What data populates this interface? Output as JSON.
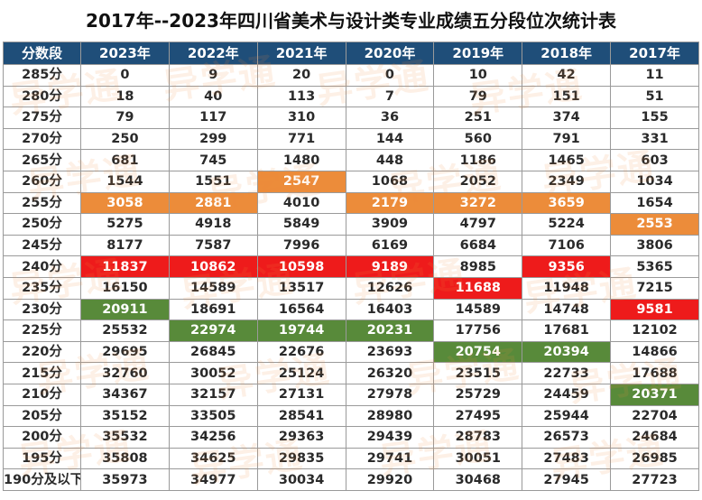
{
  "title": "2017年--2023年四川省美术与设计类专业成绩五分段位次统计表",
  "watermark": "异学通",
  "headers": [
    "分数段",
    "2023年",
    "2022年",
    "2021年",
    "2020年",
    "2019年",
    "2018年",
    "2017年"
  ],
  "rows": [
    {
      "label": "285分",
      "cells": [
        {
          "v": "0"
        },
        {
          "v": "9"
        },
        {
          "v": "20"
        },
        {
          "v": "0"
        },
        {
          "v": "10"
        },
        {
          "v": "42"
        },
        {
          "v": "11"
        }
      ]
    },
    {
      "label": "280分",
      "cells": [
        {
          "v": "18"
        },
        {
          "v": "40"
        },
        {
          "v": "113"
        },
        {
          "v": "7"
        },
        {
          "v": "79"
        },
        {
          "v": "151"
        },
        {
          "v": "51"
        }
      ]
    },
    {
      "label": "275分",
      "cells": [
        {
          "v": "79"
        },
        {
          "v": "117"
        },
        {
          "v": "310"
        },
        {
          "v": "36"
        },
        {
          "v": "251"
        },
        {
          "v": "374"
        },
        {
          "v": "155"
        }
      ]
    },
    {
      "label": "270分",
      "cells": [
        {
          "v": "250"
        },
        {
          "v": "299"
        },
        {
          "v": "771"
        },
        {
          "v": "144"
        },
        {
          "v": "560"
        },
        {
          "v": "791"
        },
        {
          "v": "331"
        }
      ]
    },
    {
      "label": "265分",
      "cells": [
        {
          "v": "681"
        },
        {
          "v": "745"
        },
        {
          "v": "1480"
        },
        {
          "v": "448"
        },
        {
          "v": "1186"
        },
        {
          "v": "1465"
        },
        {
          "v": "603"
        }
      ]
    },
    {
      "label": "260分",
      "cells": [
        {
          "v": "1544"
        },
        {
          "v": "1551"
        },
        {
          "v": "2547",
          "h": "orange"
        },
        {
          "v": "1068"
        },
        {
          "v": "2052"
        },
        {
          "v": "2349"
        },
        {
          "v": "1034"
        }
      ]
    },
    {
      "label": "255分",
      "cells": [
        {
          "v": "3058",
          "h": "orange"
        },
        {
          "v": "2881",
          "h": "orange"
        },
        {
          "v": "4010"
        },
        {
          "v": "2179",
          "h": "orange"
        },
        {
          "v": "3272",
          "h": "orange"
        },
        {
          "v": "3659",
          "h": "orange"
        },
        {
          "v": "1654"
        }
      ]
    },
    {
      "label": "250分",
      "cells": [
        {
          "v": "5275"
        },
        {
          "v": "4918"
        },
        {
          "v": "5849"
        },
        {
          "v": "3909"
        },
        {
          "v": "4797"
        },
        {
          "v": "5224"
        },
        {
          "v": "2553",
          "h": "orange"
        }
      ]
    },
    {
      "label": "245分",
      "cells": [
        {
          "v": "8177"
        },
        {
          "v": "7587"
        },
        {
          "v": "7996"
        },
        {
          "v": "6169"
        },
        {
          "v": "6684"
        },
        {
          "v": "7106"
        },
        {
          "v": "3806"
        }
      ]
    },
    {
      "label": "240分",
      "cells": [
        {
          "v": "11837",
          "h": "red"
        },
        {
          "v": "10862",
          "h": "red"
        },
        {
          "v": "10598",
          "h": "red"
        },
        {
          "v": "9189",
          "h": "red"
        },
        {
          "v": "8985"
        },
        {
          "v": "9356",
          "h": "red"
        },
        {
          "v": "5365"
        }
      ]
    },
    {
      "label": "235分",
      "cells": [
        {
          "v": "16150"
        },
        {
          "v": "14589"
        },
        {
          "v": "13517"
        },
        {
          "v": "12626"
        },
        {
          "v": "11688",
          "h": "red"
        },
        {
          "v": "11948"
        },
        {
          "v": "7215"
        }
      ]
    },
    {
      "label": "230分",
      "cells": [
        {
          "v": "20911",
          "h": "green"
        },
        {
          "v": "18691"
        },
        {
          "v": "16564"
        },
        {
          "v": "16403"
        },
        {
          "v": "14589"
        },
        {
          "v": "14748"
        },
        {
          "v": "9581",
          "h": "red"
        }
      ]
    },
    {
      "label": "225分",
      "cells": [
        {
          "v": "25532"
        },
        {
          "v": "22974",
          "h": "green"
        },
        {
          "v": "19744",
          "h": "green"
        },
        {
          "v": "20231",
          "h": "green"
        },
        {
          "v": "17756"
        },
        {
          "v": "17681"
        },
        {
          "v": "12102"
        }
      ]
    },
    {
      "label": "220分",
      "cells": [
        {
          "v": "29695"
        },
        {
          "v": "26845"
        },
        {
          "v": "22676"
        },
        {
          "v": "23693"
        },
        {
          "v": "20754",
          "h": "green"
        },
        {
          "v": "20394",
          "h": "green"
        },
        {
          "v": "14866"
        }
      ]
    },
    {
      "label": "215分",
      "cells": [
        {
          "v": "32760"
        },
        {
          "v": "30052"
        },
        {
          "v": "25124"
        },
        {
          "v": "26320"
        },
        {
          "v": "23515"
        },
        {
          "v": "22733"
        },
        {
          "v": "17688"
        }
      ]
    },
    {
      "label": "210分",
      "cells": [
        {
          "v": "34367"
        },
        {
          "v": "32157"
        },
        {
          "v": "27131"
        },
        {
          "v": "27978"
        },
        {
          "v": "25729"
        },
        {
          "v": "24459"
        },
        {
          "v": "20371",
          "h": "green"
        }
      ]
    },
    {
      "label": "205分",
      "cells": [
        {
          "v": "35152"
        },
        {
          "v": "33505"
        },
        {
          "v": "28541"
        },
        {
          "v": "28980"
        },
        {
          "v": "27495"
        },
        {
          "v": "25944"
        },
        {
          "v": "22704"
        }
      ]
    },
    {
      "label": "200分",
      "cells": [
        {
          "v": "35532"
        },
        {
          "v": "34256"
        },
        {
          "v": "29363"
        },
        {
          "v": "29439"
        },
        {
          "v": "28783"
        },
        {
          "v": "26573"
        },
        {
          "v": "24684"
        }
      ]
    },
    {
      "label": "195分",
      "cells": [
        {
          "v": "35808"
        },
        {
          "v": "34625"
        },
        {
          "v": "29835"
        },
        {
          "v": "29741"
        },
        {
          "v": "30051"
        },
        {
          "v": "27483"
        },
        {
          "v": "26985"
        }
      ]
    },
    {
      "label": "190分及以下",
      "cells": [
        {
          "v": "35973"
        },
        {
          "v": "34977"
        },
        {
          "v": "30034"
        },
        {
          "v": "29920"
        },
        {
          "v": "30468"
        },
        {
          "v": "27945"
        },
        {
          "v": "27723"
        }
      ]
    }
  ],
  "colors": {
    "header_bg": "#1f4e79",
    "orange": "#ec8c3a",
    "red": "#ee1b1b",
    "green": "#588a3a"
  }
}
